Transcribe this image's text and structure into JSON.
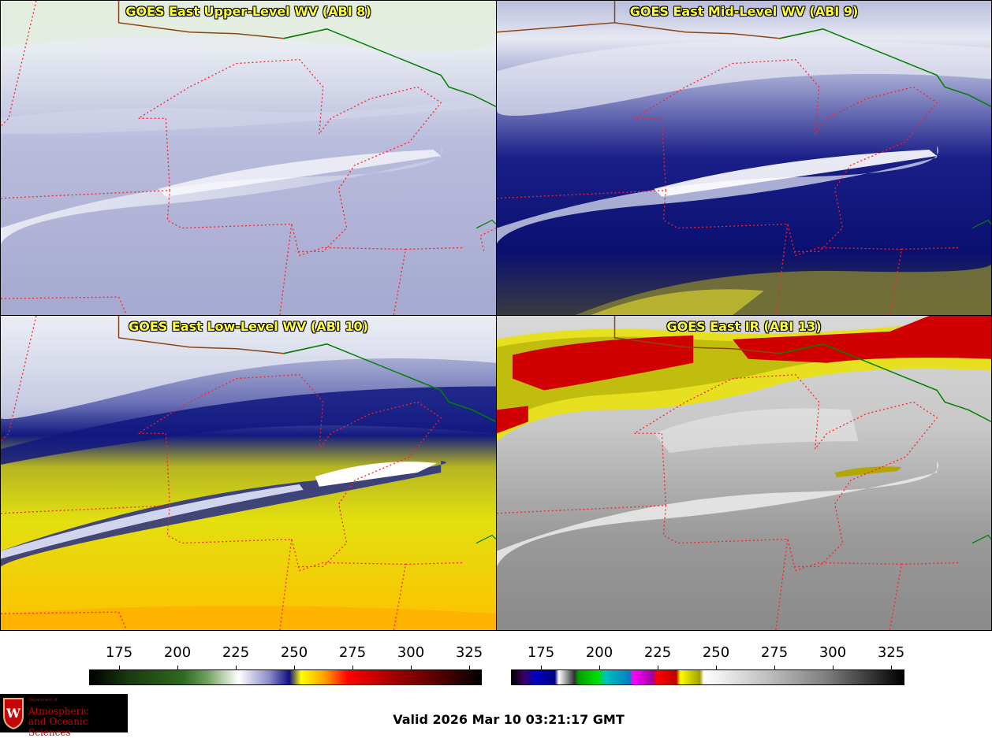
{
  "panels": [
    {
      "title": "GOES East Upper-Level WV (ABI 8)",
      "scheme": "upper"
    },
    {
      "title": "GOES East Mid-Level WV (ABI 9)",
      "scheme": "mid"
    },
    {
      "title": "GOES East Low-Level WV (ABI 10)",
      "scheme": "low"
    },
    {
      "title": "GOES East IR (ABI 13)",
      "scheme": "ir"
    }
  ],
  "colorbars": [
    {
      "ticks": [
        "175",
        "200",
        "225",
        "250",
        "275",
        "300",
        "325"
      ]
    },
    {
      "ticks": [
        "175",
        "200",
        "225",
        "250",
        "275",
        "300",
        "325"
      ]
    }
  ],
  "valid_time": "Valid 2026 Mar 10 03:21:17 GMT",
  "logo": {
    "dept": "Department of",
    "line1": "Atmospheric",
    "line2": "and Oceanic Sciences"
  },
  "colors": {
    "state_borders": "#ff2020",
    "intl_border": "#008000",
    "coast": "#8b4513",
    "title_text": "#ffff33"
  }
}
